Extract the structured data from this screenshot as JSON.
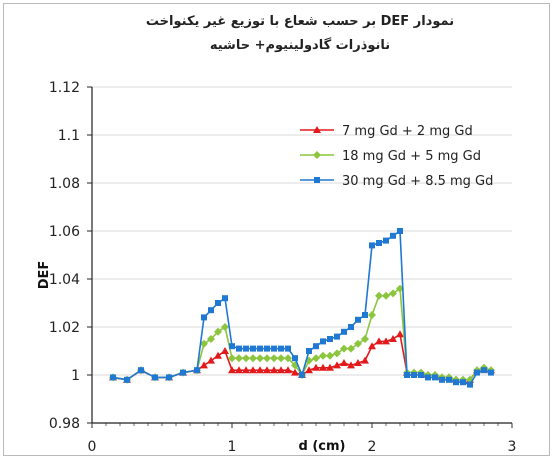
{
  "chart_data": {
    "type": "line",
    "title_line1": "نمودار DEF بر حسب شعاع با توزیع غیر یکنواخت",
    "title_line2": "نانوذرات گادولینیوم+ حاشیه",
    "xlabel": "d (cm)",
    "ylabel": "DEF",
    "xlim": [
      0,
      3
    ],
    "ylim": [
      0.98,
      1.12
    ],
    "x_ticks": [
      "0",
      "1",
      "2",
      "3"
    ],
    "y_ticks": [
      "0.98",
      "1",
      "1.02",
      "1.04",
      "1.06",
      "1.08",
      "1.1",
      "1.12"
    ],
    "grid": true,
    "legend_position": "top-right",
    "x": [
      0.15,
      0.25,
      0.35,
      0.45,
      0.55,
      0.65,
      0.75,
      0.8,
      0.85,
      0.9,
      0.95,
      1.0,
      1.05,
      1.1,
      1.15,
      1.2,
      1.25,
      1.3,
      1.35,
      1.4,
      1.45,
      1.5,
      1.55,
      1.6,
      1.65,
      1.7,
      1.75,
      1.8,
      1.85,
      1.9,
      1.95,
      2.0,
      2.05,
      2.1,
      2.15,
      2.2,
      2.25,
      2.3,
      2.35,
      2.4,
      2.45,
      2.5,
      2.55,
      2.6,
      2.65,
      2.7,
      2.75,
      2.8,
      2.85
    ],
    "series": [
      {
        "name": "7 mg Gd + 2 mg Gd",
        "color": "#e31a1c",
        "marker": "triangle",
        "values": [
          0.999,
          0.998,
          1.002,
          0.999,
          0.999,
          1.001,
          1.002,
          1.004,
          1.006,
          1.008,
          1.01,
          1.002,
          1.002,
          1.002,
          1.002,
          1.002,
          1.002,
          1.002,
          1.002,
          1.002,
          1.001,
          1.0,
          1.002,
          1.003,
          1.003,
          1.003,
          1.004,
          1.005,
          1.004,
          1.005,
          1.006,
          1.012,
          1.014,
          1.014,
          1.015,
          1.017,
          1.001,
          1.001,
          1.001,
          1.0,
          1.0,
          0.999,
          0.999,
          0.998,
          0.998,
          0.998,
          1.002,
          1.003,
          1.002
        ]
      },
      {
        "name": "18 mg Gd + 5 mg Gd",
        "color": "#8cc63f",
        "marker": "diamond",
        "values": [
          0.999,
          0.998,
          1.002,
          0.999,
          0.999,
          1.001,
          1.002,
          1.013,
          1.015,
          1.018,
          1.02,
          1.007,
          1.007,
          1.007,
          1.007,
          1.007,
          1.007,
          1.007,
          1.007,
          1.007,
          1.004,
          1.0,
          1.006,
          1.007,
          1.008,
          1.008,
          1.009,
          1.011,
          1.011,
          1.013,
          1.015,
          1.025,
          1.033,
          1.033,
          1.034,
          1.036,
          1.001,
          1.001,
          1.001,
          1.0,
          1.0,
          0.999,
          0.999,
          0.998,
          0.998,
          0.998,
          1.002,
          1.003,
          1.002
        ]
      },
      {
        "name": "30 mg Gd + 8.5 mg Gd",
        "color": "#1f78d1",
        "marker": "square",
        "values": [
          0.999,
          0.998,
          1.002,
          0.999,
          0.999,
          1.001,
          1.002,
          1.024,
          1.027,
          1.03,
          1.032,
          1.012,
          1.011,
          1.011,
          1.011,
          1.011,
          1.011,
          1.011,
          1.011,
          1.011,
          1.007,
          1.0,
          1.01,
          1.012,
          1.014,
          1.015,
          1.016,
          1.018,
          1.02,
          1.023,
          1.025,
          1.054,
          1.055,
          1.056,
          1.058,
          1.06,
          1.0,
          1.0,
          1.0,
          0.999,
          0.999,
          0.998,
          0.998,
          0.997,
          0.997,
          0.996,
          1.001,
          1.002,
          1.001
        ]
      }
    ]
  }
}
